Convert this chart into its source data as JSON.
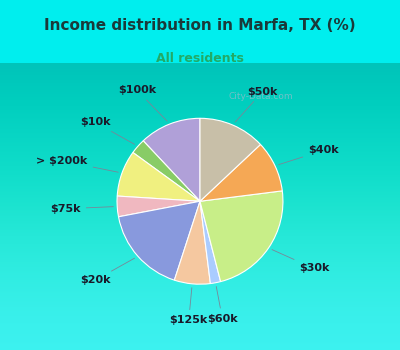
{
  "title": "Income distribution in Marfa, TX (%)",
  "subtitle": "All residents",
  "title_color": "#1a3a3a",
  "subtitle_color": "#22aa66",
  "bg_top_color": "#00eeee",
  "chart_bg": "#dff0e8",
  "watermark": "City-Data.com",
  "segments": [
    {
      "label": "$100k",
      "value": 12,
      "color": "#b0a0d8"
    },
    {
      "label": "$10k",
      "value": 3,
      "color": "#88cc66"
    },
    {
      "label": "> $200k",
      "value": 9,
      "color": "#f0f080"
    },
    {
      "label": "$75k",
      "value": 4,
      "color": "#f0b8c0"
    },
    {
      "label": "$20k",
      "value": 17,
      "color": "#8899dd"
    },
    {
      "label": "$125k",
      "value": 7,
      "color": "#f5c8a0"
    },
    {
      "label": "$60k",
      "value": 2,
      "color": "#aaccff"
    },
    {
      "label": "$30k",
      "value": 23,
      "color": "#c8ee88"
    },
    {
      "label": "$40k",
      "value": 10,
      "color": "#f5a855"
    },
    {
      "label": "$50k",
      "value": 13,
      "color": "#c8bfa8"
    }
  ],
  "start_angle": 90,
  "label_fontsize": 8,
  "title_fontsize": 11,
  "subtitle_fontsize": 9
}
